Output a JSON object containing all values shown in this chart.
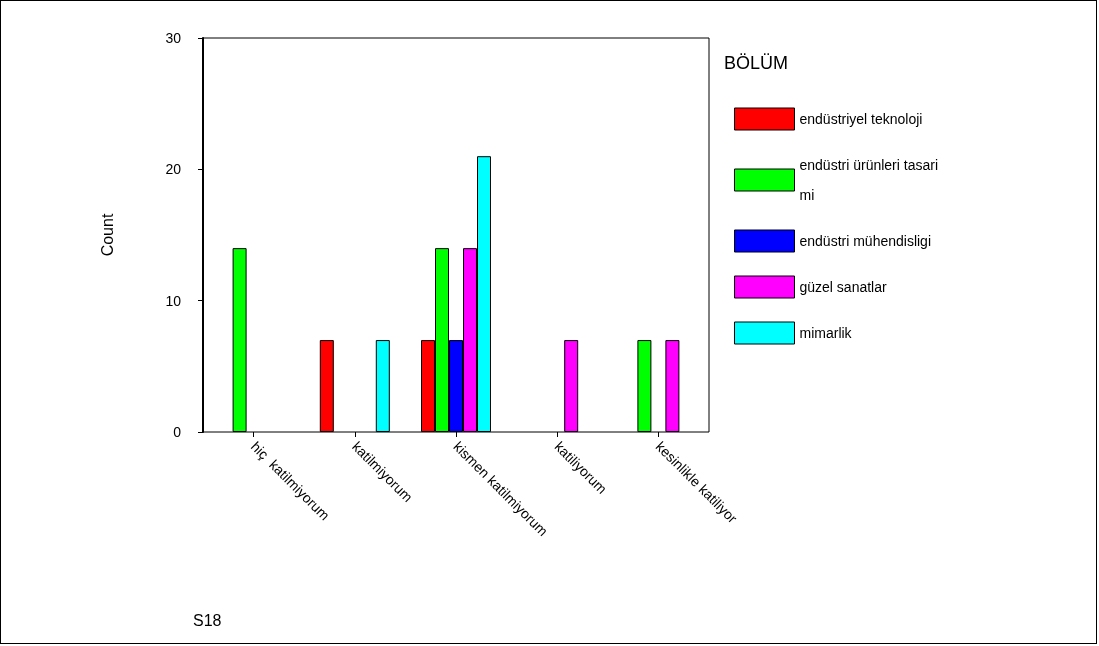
{
  "chart_data": {
    "type": "bar",
    "xlabel": "S18",
    "ylabel": "Count",
    "legend_title": "BÖLÜM",
    "legend": "right",
    "categories": [
      "hiç  katilmiyorum",
      "katilmiyorum",
      "kismen katilmiyorum",
      "katiliyorum",
      "kesinlikle katiliyor"
    ],
    "ylim": [
      0,
      30
    ],
    "yticks": [
      0,
      10,
      20,
      30
    ],
    "series": [
      {
        "name": "endüstriyel teknoloji",
        "color": "#ff0000",
        "values": [
          null,
          7,
          7,
          null,
          null
        ]
      },
      {
        "name": "endüstri ürünleri tasarimi",
        "color": "#00ff00",
        "values": [
          14,
          null,
          14,
          null,
          7
        ]
      },
      {
        "name": "endüstri mühendisligi",
        "color": "#0000ff",
        "values": [
          null,
          null,
          7,
          null,
          null
        ]
      },
      {
        "name": "güzel sanatlar",
        "color": "#ff00ff",
        "values": [
          null,
          null,
          14,
          7,
          7
        ]
      },
      {
        "name": "mimarlik",
        "color": "#00ffff",
        "values": [
          null,
          7,
          21,
          null,
          null
        ]
      }
    ]
  }
}
